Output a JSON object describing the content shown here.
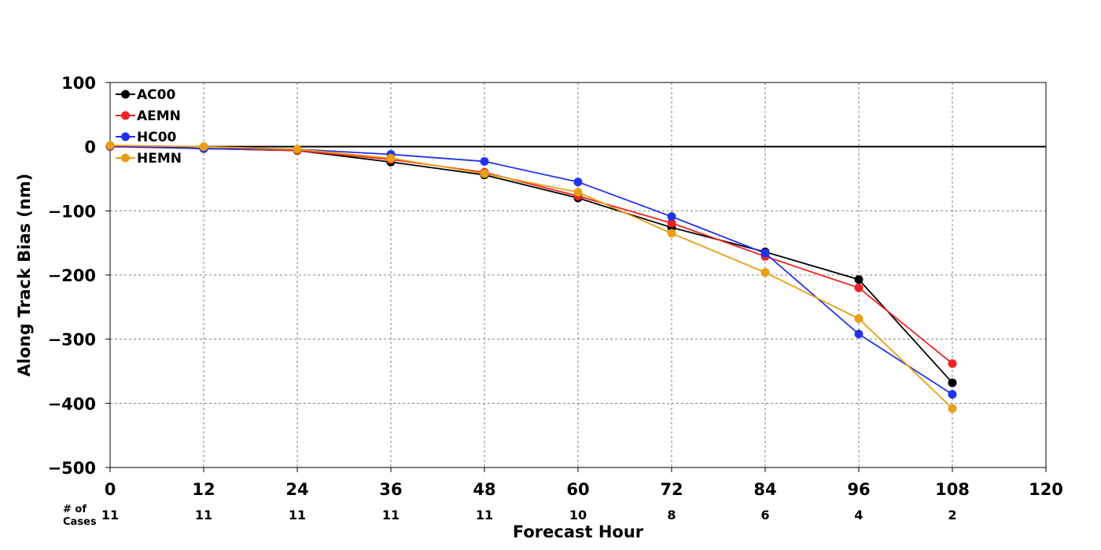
{
  "chart_data": {
    "type": "line",
    "title": "",
    "xlabel": "Forecast Hour",
    "ylabel": "Along Track Bias (nm)",
    "xlim": [
      0,
      120
    ],
    "ylim": [
      -500,
      100
    ],
    "xticks": [
      0,
      12,
      24,
      36,
      48,
      60,
      72,
      84,
      96,
      108,
      120
    ],
    "yticks": [
      100,
      0,
      -100,
      -200,
      -300,
      -400,
      -500
    ],
    "ytick_labels": [
      "100",
      "0",
      "−100",
      "−200",
      "−300",
      "−400",
      "−500"
    ],
    "grid": true,
    "legend_position": "top-left",
    "x": [
      0,
      12,
      24,
      36,
      48,
      60,
      72,
      84,
      96,
      108
    ],
    "series": [
      {
        "name": "AC00",
        "color": "#000000",
        "values": [
          1,
          -3,
          -6,
          -24,
          -44,
          -80,
          -126,
          -164,
          -207,
          -368
        ]
      },
      {
        "name": "AEMN",
        "color": "#ee2222",
        "values": [
          0,
          -3,
          -6,
          -20,
          -40,
          -77,
          -119,
          -171,
          -220,
          -338
        ]
      },
      {
        "name": "HC00",
        "color": "#2233ee",
        "values": [
          1,
          -3,
          -4,
          -12,
          -23,
          -55,
          -109,
          -166,
          -292,
          -386
        ]
      },
      {
        "name": "HEMN",
        "color": "#e8a013",
        "values": [
          2,
          0,
          -4,
          -18,
          -42,
          -71,
          -135,
          -196,
          -268,
          -408
        ]
      }
    ],
    "cases_label": "# of\nCases",
    "cases_label_lines": [
      "# of",
      "Cases"
    ],
    "cases": [
      11,
      11,
      11,
      11,
      11,
      10,
      8,
      6,
      4,
      2
    ]
  }
}
